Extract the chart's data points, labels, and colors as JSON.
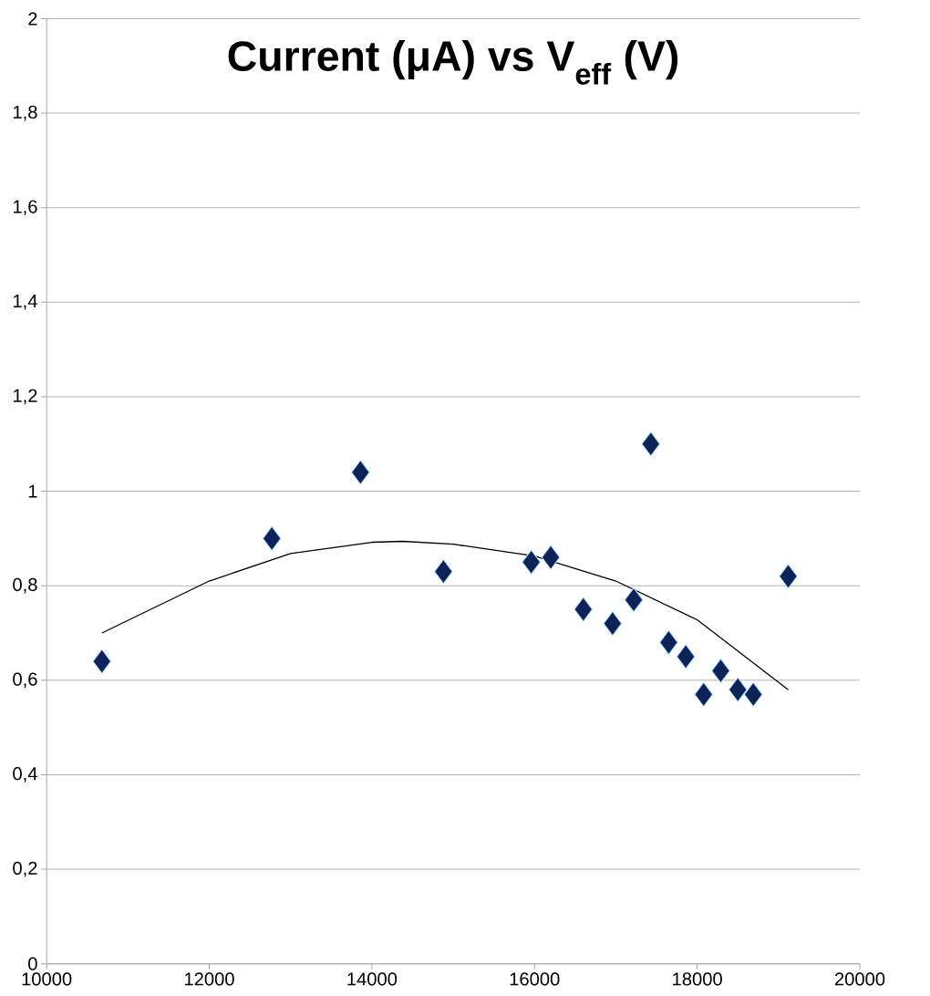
{
  "chart_data": {
    "type": "scatter",
    "title": "Current  (μA) vs V$_{eff}$ (V)",
    "xlim": [
      10000,
      20000
    ],
    "xticks": [
      10000,
      12000,
      14000,
      16000,
      18000,
      20000
    ],
    "ylim": [
      0,
      2
    ],
    "yticks": [
      0,
      {
        "value": 0.2,
        "label": "0,2"
      },
      {
        "value": 0.4,
        "label": "0,4"
      },
      {
        "value": 0.6,
        "label": "0,6"
      },
      {
        "value": 0.8,
        "label": "0,8"
      },
      1,
      {
        "value": 1.2,
        "label": "1,2"
      },
      {
        "value": 1.4,
        "label": "1,4"
      },
      {
        "value": 1.6,
        "label": "1,6"
      },
      {
        "value": 1.8,
        "label": "1,8"
      },
      2
    ],
    "grid": "y",
    "marker": "diamond",
    "series": [
      {
        "color": "#0c2259",
        "x": [
          10680,
          12770,
          13860,
          14880,
          15960,
          16200,
          16600,
          16960,
          17220,
          17430,
          17650,
          17860,
          18080,
          18290,
          18500,
          18690,
          19120
        ],
        "values": [
          0.64,
          0.9,
          1.04,
          0.83,
          0.85,
          0.86,
          0.75,
          0.72,
          0.77,
          1.1,
          0.68,
          0.65,
          0.57,
          0.62,
          0.58,
          0.57,
          0.82
        ]
      },
      {
        "type": "line",
        "marker": "none",
        "color": "#000000",
        "x": [
          10680,
          12000,
          13000,
          14000,
          14380,
          15000,
          16000,
          17000,
          18000,
          19120
        ],
        "values": [
          0.7,
          0.81,
          0.868,
          0.892,
          0.894,
          0.888,
          0.863,
          0.81,
          0.728,
          0.58
        ]
      }
    ]
  }
}
